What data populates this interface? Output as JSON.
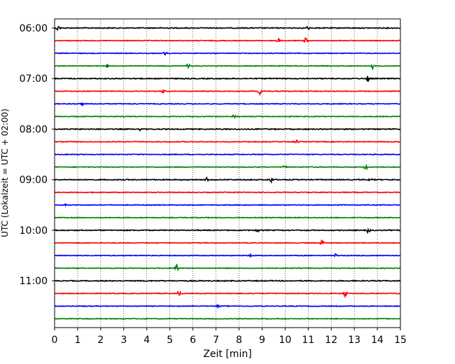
{
  "chart_data": {
    "type": "line",
    "title": "",
    "xlabel": "Zeit  [min]",
    "ylabel": "UTC (Lokalzeit = UTC + 02:00)",
    "xlim": [
      0,
      15
    ],
    "x_ticks": [
      "0",
      "1",
      "2",
      "3",
      "4",
      "5",
      "6",
      "7",
      "8",
      "9",
      "10",
      "11",
      "12",
      "13",
      "14",
      "15"
    ],
    "y_ticks": [
      "06:00",
      "07:00",
      "08:00",
      "09:00",
      "10:00",
      "11:00"
    ],
    "grid": "vertical dotted",
    "trace_start": "06:00",
    "trace_interval_min": 15,
    "trace_count": 24,
    "colors": [
      "#000000",
      "#ff0000",
      "#0000ff",
      "#008000"
    ],
    "events": [
      {
        "trace": 0,
        "t": 0.15,
        "amp": 0.6
      },
      {
        "trace": 0,
        "t": 11.0,
        "amp": 0.4
      },
      {
        "trace": 1,
        "t": 9.7,
        "amp": 0.5
      },
      {
        "trace": 1,
        "t": 10.9,
        "amp": 0.7
      },
      {
        "trace": 2,
        "t": 4.8,
        "amp": 0.4
      },
      {
        "trace": 3,
        "t": 2.3,
        "amp": 0.6
      },
      {
        "trace": 3,
        "t": 5.8,
        "amp": 0.5
      },
      {
        "trace": 3,
        "t": 13.8,
        "amp": 0.6
      },
      {
        "trace": 4,
        "t": 13.6,
        "amp": 0.7
      },
      {
        "trace": 5,
        "t": 8.9,
        "amp": 0.6
      },
      {
        "trace": 5,
        "t": 4.7,
        "amp": 0.4
      },
      {
        "trace": 6,
        "t": 1.2,
        "amp": 0.4
      },
      {
        "trace": 7,
        "t": 7.8,
        "amp": 0.4
      },
      {
        "trace": 8,
        "t": 3.7,
        "amp": 0.3
      },
      {
        "trace": 9,
        "t": 10.5,
        "amp": 0.4
      },
      {
        "trace": 11,
        "t": 10.0,
        "amp": 0.4
      },
      {
        "trace": 11,
        "t": 13.5,
        "amp": 0.5
      },
      {
        "trace": 12,
        "t": 9.4,
        "amp": 0.6
      },
      {
        "trace": 12,
        "t": 13.7,
        "amp": 0.5
      },
      {
        "trace": 12,
        "t": 6.6,
        "amp": 0.4
      },
      {
        "trace": 14,
        "t": 0.5,
        "amp": 0.3
      },
      {
        "trace": 16,
        "t": 8.8,
        "amp": 0.4
      },
      {
        "trace": 16,
        "t": 13.6,
        "amp": 0.5
      },
      {
        "trace": 17,
        "t": 11.6,
        "amp": 0.6
      },
      {
        "trace": 18,
        "t": 8.5,
        "amp": 0.3
      },
      {
        "trace": 18,
        "t": 12.2,
        "amp": 0.3
      },
      {
        "trace": 19,
        "t": 5.3,
        "amp": 0.9
      },
      {
        "trace": 21,
        "t": 5.4,
        "amp": 0.5
      },
      {
        "trace": 21,
        "t": 12.6,
        "amp": 0.6
      },
      {
        "trace": 22,
        "t": 7.1,
        "amp": 0.3
      }
    ]
  }
}
